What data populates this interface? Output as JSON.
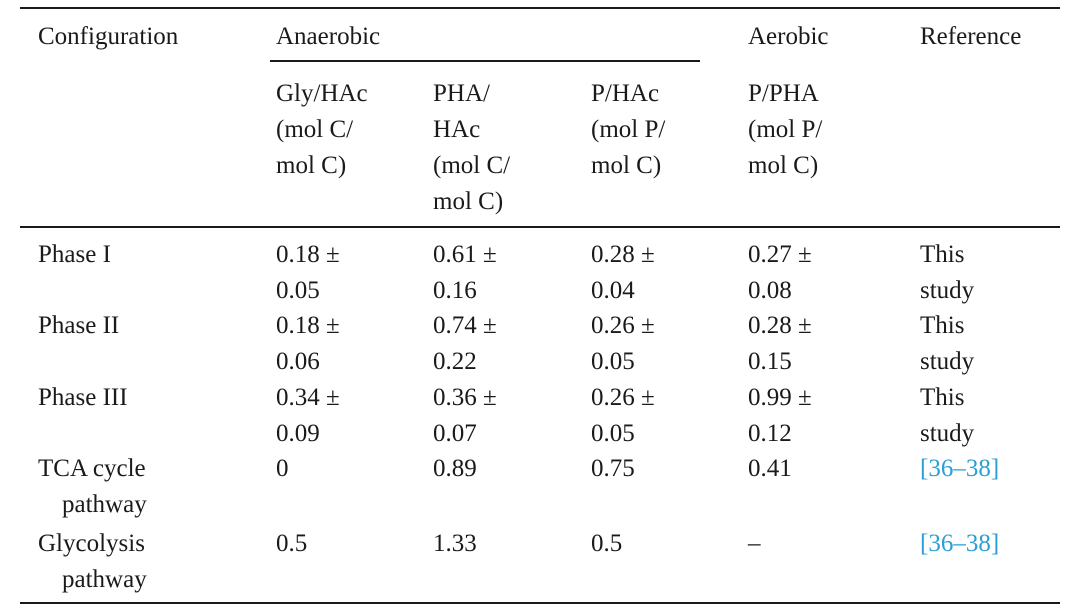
{
  "table": {
    "header": {
      "configuration": "Configuration",
      "anaerobic": "Anaerobic",
      "aerobic": "Aerobic",
      "reference": "Reference",
      "gly_hac": [
        "Gly/HAc",
        "(mol C/",
        "mol C)"
      ],
      "pha_hac": [
        "PHA/",
        "HAc",
        "(mol C/",
        "mol C)"
      ],
      "p_hac": [
        "P/HAc",
        "(mol P/",
        "mol C)"
      ],
      "p_pha": [
        "P/PHA",
        "(mol P/",
        "mol C)"
      ]
    },
    "rows": [
      {
        "configuration": [
          "Phase I"
        ],
        "gly_hac": [
          "0.18 ±",
          "0.05"
        ],
        "pha_hac": [
          "0.61 ±",
          "0.16"
        ],
        "p_hac": [
          "0.28 ±",
          "0.04"
        ],
        "p_pha": [
          "0.27 ±",
          "0.08"
        ],
        "reference": [
          "This",
          "study"
        ]
      },
      {
        "configuration": [
          "Phase II"
        ],
        "gly_hac": [
          "0.18 ±",
          "0.06"
        ],
        "pha_hac": [
          "0.74 ±",
          "0.22"
        ],
        "p_hac": [
          "0.26 ±",
          "0.05"
        ],
        "p_pha": [
          "0.28 ±",
          "0.15"
        ],
        "reference": [
          "This",
          "study"
        ]
      },
      {
        "configuration": [
          "Phase III"
        ],
        "gly_hac": [
          "0.34 ±",
          "0.09"
        ],
        "pha_hac": [
          "0.36 ±",
          "0.07"
        ],
        "p_hac": [
          "0.26 ±",
          "0.05"
        ],
        "p_pha": [
          "0.99 ±",
          "0.12"
        ],
        "reference": [
          "This",
          "study"
        ]
      },
      {
        "configuration": [
          "TCA cycle",
          "pathway"
        ],
        "gly_hac": [
          "0"
        ],
        "pha_hac": [
          "0.89"
        ],
        "p_hac": [
          "0.75"
        ],
        "p_pha": [
          "0.41"
        ],
        "reference": [
          "[36–38]"
        ]
      },
      {
        "configuration": [
          "Glycolysis",
          "pathway"
        ],
        "gly_hac": [
          "0.5"
        ],
        "pha_hac": [
          "1.33"
        ],
        "p_hac": [
          "0.5"
        ],
        "p_pha": [
          "–"
        ],
        "reference": [
          "[36–38]"
        ]
      }
    ]
  },
  "colors": {
    "text": "#1a1a1a",
    "link": "#2a9fd6",
    "rule": "#1a1a1a"
  }
}
